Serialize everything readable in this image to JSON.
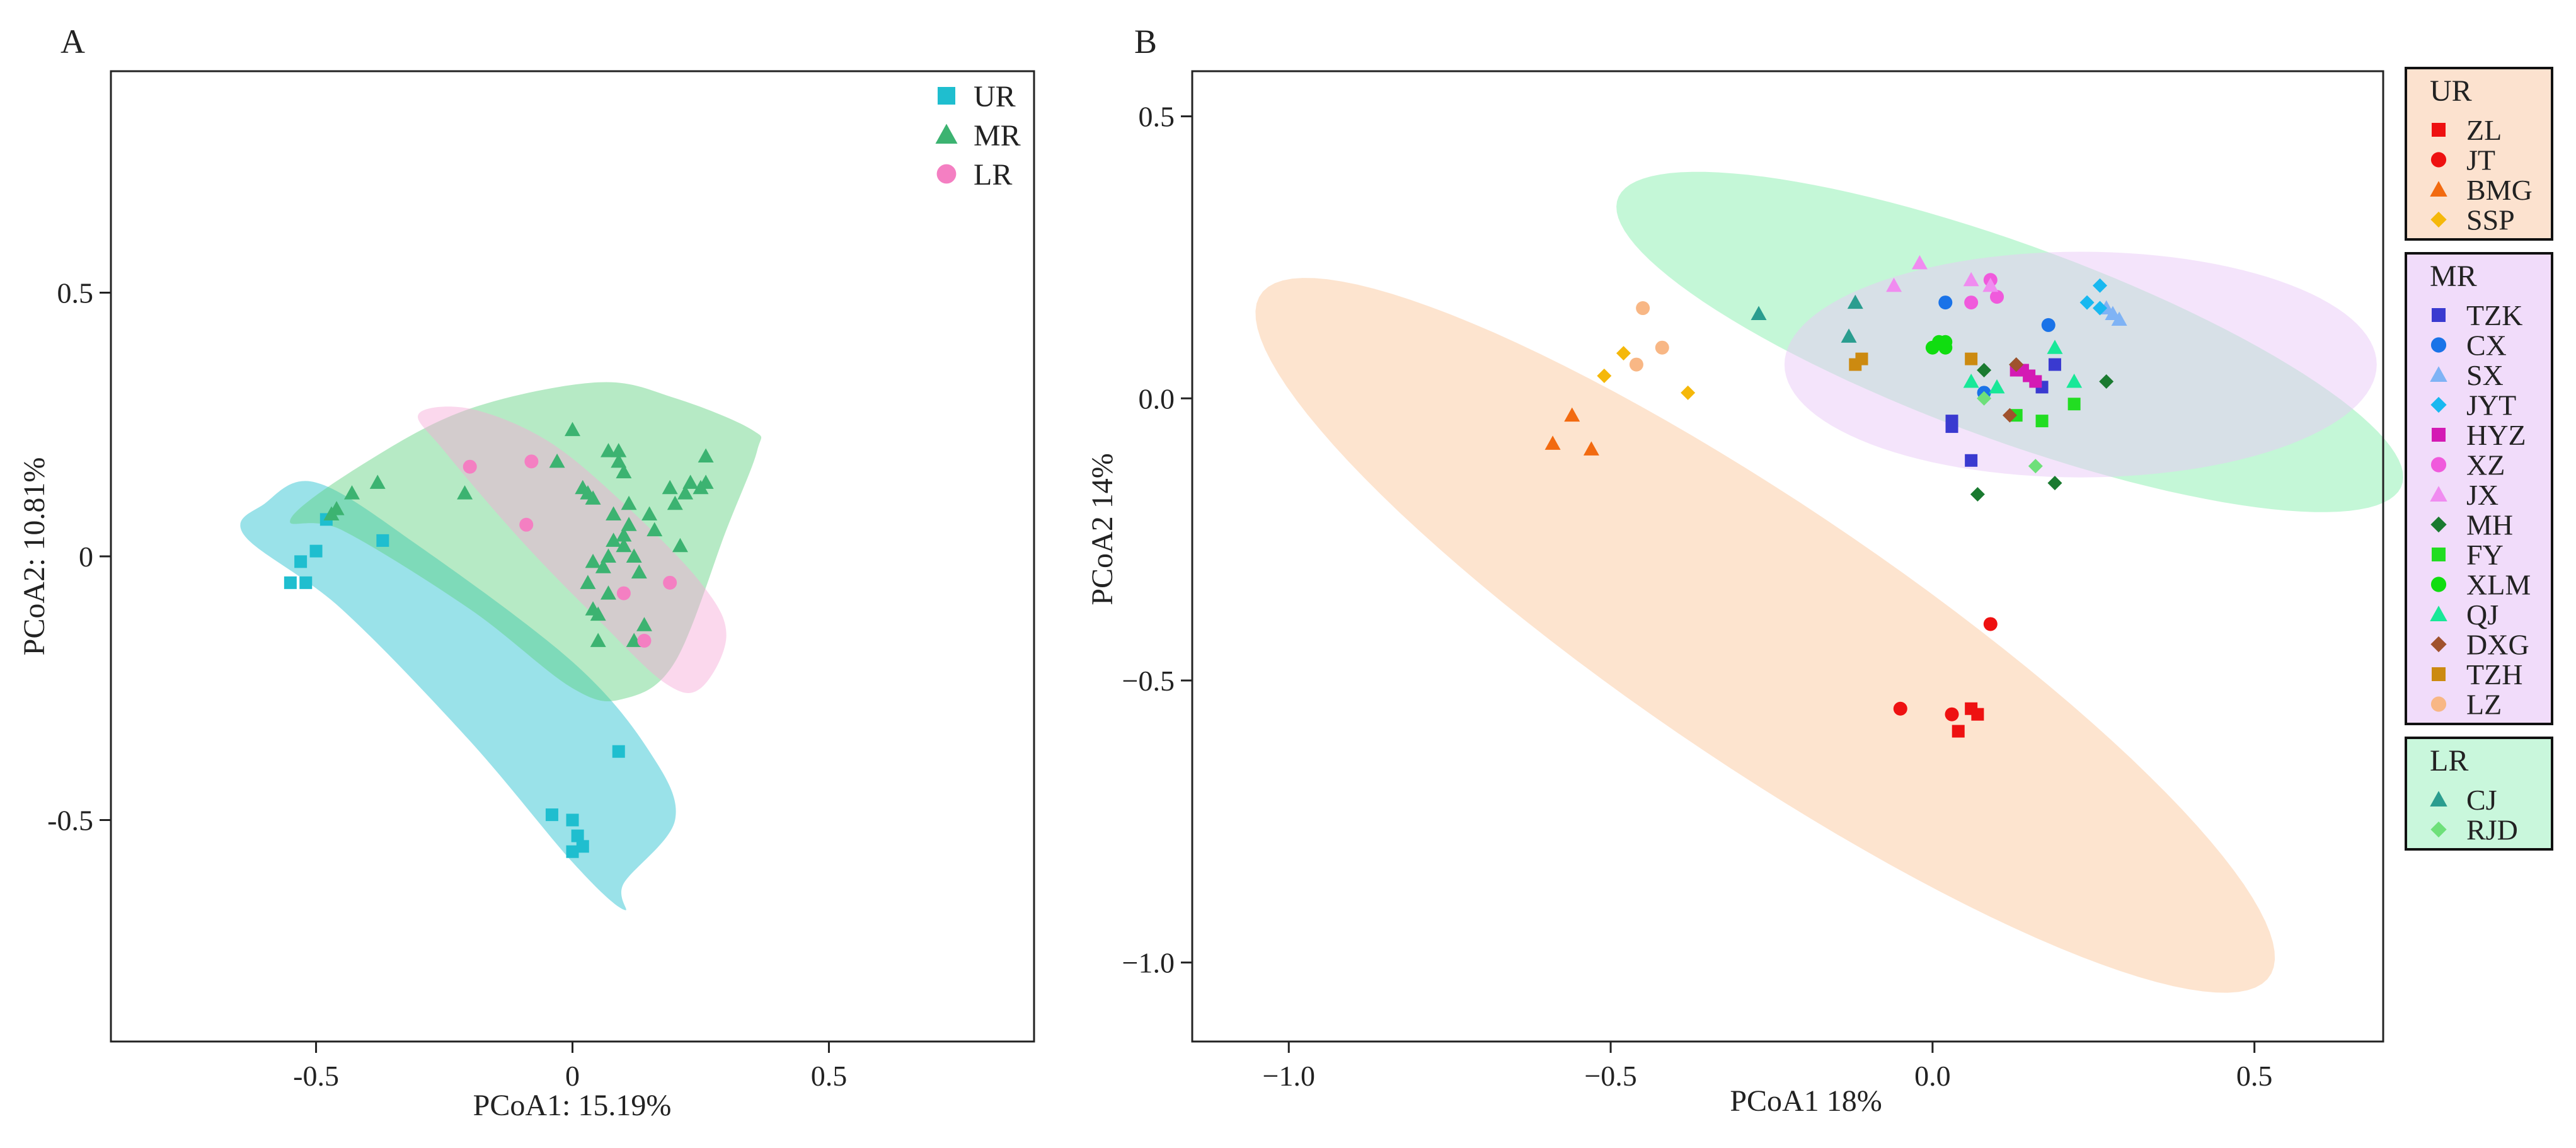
{
  "chart_data": [
    {
      "panel_label": "A",
      "type": "scatter",
      "xlabel": "PCoA1: 15.19%",
      "ylabel": "PCoA2: 10.81%",
      "xlim": [
        -0.9,
        0.9
      ],
      "ylim": [
        -0.92,
        0.92
      ],
      "xticks": [
        -0.5,
        0,
        0.5
      ],
      "yticks": [
        -0.5,
        0,
        0.5
      ],
      "xtick_labels": [
        "-0.5",
        "0",
        "0.5"
      ],
      "ytick_labels": [
        "-0.5",
        "0",
        "0.5"
      ],
      "legend_position": "top-right",
      "series": [
        {
          "name": "UR",
          "color": "#1FBECF",
          "marker": "square",
          "fill": "#1FBECF",
          "hull": [
            [
              -0.6,
              0.1
            ],
            [
              -0.5,
              0.14
            ],
            [
              -0.3,
              0.02
            ],
            [
              0.0,
              -0.2
            ],
            [
              0.15,
              -0.37
            ],
            [
              0.2,
              -0.5
            ],
            [
              0.1,
              -0.62
            ],
            [
              0.1,
              -0.67
            ],
            [
              0.0,
              -0.58
            ],
            [
              -0.2,
              -0.35
            ],
            [
              -0.45,
              -0.1
            ],
            [
              -0.64,
              0.04
            ]
          ],
          "points": [
            [
              -0.55,
              -0.05
            ],
            [
              -0.52,
              -0.05
            ],
            [
              -0.53,
              -0.01
            ],
            [
              -0.5,
              0.01
            ],
            [
              -0.48,
              0.07
            ],
            [
              -0.37,
              0.03
            ],
            [
              0.09,
              -0.37
            ],
            [
              -0.04,
              -0.49
            ],
            [
              0.0,
              -0.5
            ],
            [
              0.01,
              -0.53
            ],
            [
              0.02,
              -0.55
            ],
            [
              0.0,
              -0.56
            ]
          ]
        },
        {
          "name": "MR",
          "color": "#3CB371",
          "marker": "triangle",
          "fill": "#5DD17F",
          "hull": [
            [
              -0.55,
              0.07
            ],
            [
              -0.4,
              0.18
            ],
            [
              -0.2,
              0.28
            ],
            [
              0.05,
              0.33
            ],
            [
              0.2,
              0.3
            ],
            [
              0.35,
              0.24
            ],
            [
              0.36,
              0.2
            ],
            [
              0.3,
              0.05
            ],
            [
              0.2,
              -0.2
            ],
            [
              0.1,
              -0.27
            ],
            [
              0.0,
              -0.25
            ],
            [
              -0.2,
              -0.1
            ],
            [
              -0.45,
              0.05
            ]
          ],
          "points": [
            [
              -0.46,
              0.09
            ],
            [
              -0.43,
              0.12
            ],
            [
              -0.38,
              0.14
            ],
            [
              0.0,
              0.24
            ],
            [
              -0.03,
              0.18
            ],
            [
              0.07,
              0.2
            ],
            [
              0.09,
              0.2
            ],
            [
              0.09,
              0.18
            ],
            [
              0.1,
              0.16
            ],
            [
              0.02,
              0.13
            ],
            [
              0.04,
              0.11
            ],
            [
              0.03,
              0.12
            ],
            [
              0.08,
              0.08
            ],
            [
              0.11,
              0.1
            ],
            [
              0.15,
              0.08
            ],
            [
              0.2,
              0.1
            ],
            [
              0.22,
              0.12
            ],
            [
              0.23,
              0.14
            ],
            [
              0.25,
              0.13
            ],
            [
              0.26,
              0.14
            ],
            [
              0.26,
              0.19
            ],
            [
              0.19,
              0.13
            ],
            [
              0.21,
              0.02
            ],
            [
              0.08,
              0.03
            ],
            [
              0.1,
              0.04
            ],
            [
              0.07,
              0.0
            ],
            [
              0.06,
              -0.02
            ],
            [
              0.04,
              -0.01
            ],
            [
              0.12,
              0.0
            ],
            [
              0.13,
              -0.03
            ],
            [
              0.03,
              -0.05
            ],
            [
              0.07,
              -0.07
            ],
            [
              0.04,
              -0.1
            ],
            [
              0.05,
              -0.11
            ],
            [
              0.14,
              -0.13
            ],
            [
              0.12,
              -0.16
            ],
            [
              0.05,
              -0.16
            ],
            [
              -0.21,
              0.12
            ],
            [
              0.1,
              0.02
            ],
            [
              0.11,
              0.06
            ],
            [
              0.16,
              0.05
            ],
            [
              -0.47,
              0.08
            ]
          ]
        },
        {
          "name": "LR",
          "color": "#F47FC2",
          "marker": "circle",
          "fill": "#F7A8D6",
          "hull": [
            [
              -0.3,
              0.27
            ],
            [
              -0.2,
              0.28
            ],
            [
              -0.05,
              0.22
            ],
            [
              0.1,
              0.1
            ],
            [
              0.25,
              -0.05
            ],
            [
              0.3,
              -0.15
            ],
            [
              0.25,
              -0.25
            ],
            [
              0.18,
              -0.24
            ],
            [
              0.05,
              -0.12
            ],
            [
              -0.1,
              0.03
            ],
            [
              -0.25,
              0.2
            ]
          ],
          "points": [
            [
              -0.2,
              0.17
            ],
            [
              -0.08,
              0.18
            ],
            [
              -0.09,
              0.06
            ],
            [
              0.1,
              -0.07
            ],
            [
              0.19,
              -0.05
            ],
            [
              0.14,
              -0.16
            ]
          ]
        }
      ]
    },
    {
      "panel_label": "B",
      "type": "scatter",
      "xlabel": "PCoA1 18%",
      "ylabel": "PCoA2 14%",
      "xlim": [
        -1.15,
        0.7
      ],
      "ylim": [
        -1.14,
        0.58
      ],
      "xticks": [
        -1.0,
        -0.5,
        0.0,
        0.5
      ],
      "yticks": [
        -1.0,
        -0.5,
        0.0,
        0.5
      ],
      "xtick_labels": [
        "−1.0",
        "−0.5",
        "0.0",
        "0.5"
      ],
      "ytick_labels": [
        "−1.0",
        "−0.5",
        "0.0",
        "0.5"
      ],
      "legend_position": "right",
      "ellipses": [
        {
          "group": "UR",
          "fill": "#FBC9A0",
          "cx": -0.26,
          "cy": -0.42,
          "rx": 0.99,
          "ry": 0.22,
          "angle": -38
        },
        {
          "group": "MR",
          "fill": "#8AF0B0",
          "cx": 0.12,
          "cy": 0.1,
          "rx": 0.66,
          "ry": 0.17,
          "angle": -23
        },
        {
          "group": "LR",
          "fill": "#E9C9F7",
          "cx": 0.23,
          "cy": 0.06,
          "rx": 0.46,
          "ry": 0.2,
          "angle": 0
        }
      ],
      "legend_groups": [
        {
          "title": "UR",
          "box_color": "#FCE2CF",
          "items": [
            "ZL",
            "JT",
            "BMG",
            "SSP"
          ]
        },
        {
          "title": "MR",
          "box_color": "#F1DCFA",
          "items": [
            "TZK",
            "CX",
            "SX",
            "JYT",
            "HYZ",
            "XZ",
            "JX",
            "MH",
            "FY",
            "XLM",
            "QJ",
            "DXG",
            "TZH",
            "LZ"
          ]
        },
        {
          "title": "LR",
          "box_color": "#C9F7DC",
          "items": [
            "CJ",
            "RJD"
          ]
        }
      ],
      "series": [
        {
          "name": "ZL",
          "group": "UR",
          "color": "#EE1111",
          "marker": "square",
          "points": [
            [
              0.06,
              -0.55
            ],
            [
              0.07,
              -0.56
            ],
            [
              0.04,
              -0.59
            ]
          ]
        },
        {
          "name": "JT",
          "group": "UR",
          "color": "#EE1111",
          "marker": "circle",
          "points": [
            [
              -0.05,
              -0.55
            ],
            [
              0.03,
              -0.56
            ],
            [
              0.09,
              -0.4
            ]
          ]
        },
        {
          "name": "BMG",
          "group": "UR",
          "color": "#F26A10",
          "marker": "triangle",
          "points": [
            [
              -0.59,
              -0.08
            ],
            [
              -0.56,
              -0.03
            ],
            [
              -0.53,
              -0.09
            ]
          ]
        },
        {
          "name": "SSP",
          "group": "UR",
          "color": "#F5B80A",
          "marker": "diamond",
          "points": [
            [
              -0.48,
              0.08
            ],
            [
              -0.51,
              0.04
            ],
            [
              -0.38,
              0.01
            ]
          ]
        },
        {
          "name": "TZK",
          "group": "MR",
          "color": "#3A3AD0",
          "marker": "square",
          "points": [
            [
              0.06,
              -0.11
            ],
            [
              0.03,
              -0.05
            ],
            [
              0.03,
              -0.04
            ],
            [
              0.17,
              0.02
            ],
            [
              0.19,
              0.06
            ]
          ]
        },
        {
          "name": "CX",
          "group": "MR",
          "color": "#1A73E8",
          "marker": "circle",
          "points": [
            [
              0.02,
              0.17
            ],
            [
              0.18,
              0.13
            ],
            [
              0.08,
              0.01
            ]
          ]
        },
        {
          "name": "SX",
          "group": "MR",
          "color": "#7FB3F5",
          "marker": "triangle",
          "points": [
            [
              0.28,
              0.15
            ],
            [
              0.29,
              0.14
            ],
            [
              0.27,
              0.16
            ]
          ]
        },
        {
          "name": "JYT",
          "group": "MR",
          "color": "#18B8F0",
          "marker": "diamond",
          "points": [
            [
              0.24,
              0.17
            ],
            [
              0.26,
              0.16
            ],
            [
              0.26,
              0.2
            ]
          ]
        },
        {
          "name": "HYZ",
          "group": "MR",
          "color": "#D41AB4",
          "marker": "square",
          "points": [
            [
              0.13,
              0.05
            ],
            [
              0.14,
              0.05
            ],
            [
              0.15,
              0.04
            ],
            [
              0.16,
              0.03
            ]
          ]
        },
        {
          "name": "XZ",
          "group": "MR",
          "color": "#F05ADC",
          "marker": "circle",
          "points": [
            [
              0.09,
              0.21
            ],
            [
              0.06,
              0.17
            ],
            [
              0.1,
              0.18
            ]
          ]
        },
        {
          "name": "JX",
          "group": "MR",
          "color": "#F08CF0",
          "marker": "triangle",
          "points": [
            [
              -0.02,
              0.24
            ],
            [
              -0.06,
              0.2
            ],
            [
              0.06,
              0.21
            ],
            [
              0.09,
              0.2
            ]
          ]
        },
        {
          "name": "MH",
          "group": "MR",
          "color": "#1A7A30",
          "marker": "diamond",
          "points": [
            [
              0.27,
              0.03
            ],
            [
              0.19,
              -0.15
            ],
            [
              0.07,
              -0.17
            ],
            [
              0.08,
              0.05
            ],
            [
              0.13,
              0.06
            ]
          ]
        },
        {
          "name": "FY",
          "group": "MR",
          "color": "#22DD22",
          "marker": "square",
          "points": [
            [
              0.13,
              -0.03
            ],
            [
              0.17,
              -0.04
            ],
            [
              0.22,
              -0.01
            ]
          ]
        },
        {
          "name": "XLM",
          "group": "MR",
          "color": "#10DD10",
          "marker": "circle",
          "points": [
            [
              0.0,
              0.09
            ],
            [
              0.02,
              0.1
            ],
            [
              0.02,
              0.09
            ],
            [
              0.01,
              0.1
            ]
          ]
        },
        {
          "name": "QJ",
          "group": "MR",
          "color": "#18E898",
          "marker": "triangle",
          "points": [
            [
              0.06,
              0.03
            ],
            [
              0.19,
              0.09
            ],
            [
              0.22,
              0.03
            ],
            [
              0.1,
              0.02
            ]
          ]
        },
        {
          "name": "DXG",
          "group": "MR",
          "color": "#A0522D",
          "marker": "diamond",
          "points": [
            [
              0.12,
              -0.03
            ],
            [
              0.13,
              0.06
            ]
          ]
        },
        {
          "name": "TZH",
          "group": "MR",
          "color": "#CC8A10",
          "marker": "square",
          "points": [
            [
              -0.12,
              0.06
            ],
            [
              -0.11,
              0.07
            ],
            [
              0.06,
              0.07
            ]
          ]
        },
        {
          "name": "LZ",
          "group": "MR",
          "color": "#F8B785",
          "marker": "circle",
          "points": [
            [
              -0.45,
              0.16
            ],
            [
              -0.42,
              0.09
            ],
            [
              -0.46,
              0.06
            ]
          ]
        },
        {
          "name": "CJ",
          "group": "LR",
          "color": "#2A9D8F",
          "marker": "triangle",
          "points": [
            [
              -0.27,
              0.15
            ],
            [
              -0.12,
              0.17
            ],
            [
              -0.13,
              0.11
            ]
          ]
        },
        {
          "name": "RJD",
          "group": "LR",
          "color": "#6EE07A",
          "marker": "diamond",
          "points": [
            [
              0.08,
              0.0
            ],
            [
              0.16,
              -0.12
            ]
          ]
        }
      ]
    }
  ]
}
